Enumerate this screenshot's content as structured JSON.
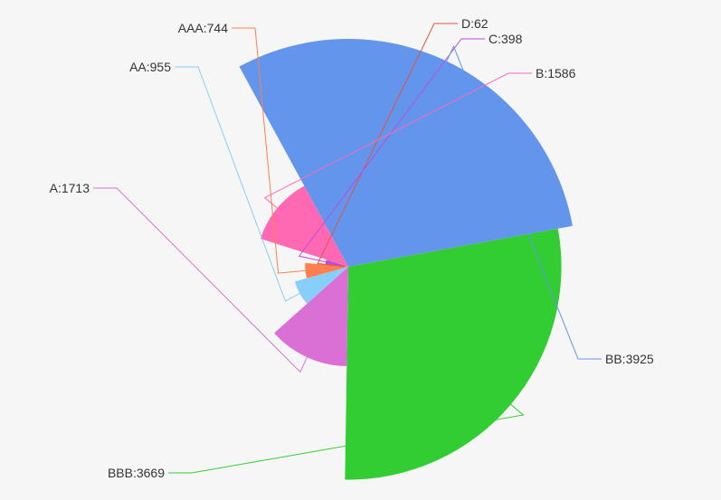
{
  "chart_data": {
    "type": "pie",
    "variant": "rose-radius",
    "title": "",
    "categories": [
      "D",
      "C",
      "B",
      "BB",
      "BBB",
      "A",
      "AA",
      "AAA"
    ],
    "values": [
      62,
      398,
      1586,
      3925,
      3669,
      1713,
      955,
      744
    ],
    "labels": [
      "D:62",
      "C:398",
      "B:1586",
      "BB:3925",
      "BBB:3669",
      "A:1713",
      "AA:955",
      "AAA:744"
    ],
    "colors": [
      "#e0533a",
      "#b84fe0",
      "#ff69b4",
      "#6495ed",
      "#32cd32",
      "#da70d6",
      "#87cefa",
      "#ff7f50"
    ],
    "legend": "none",
    "grid": false
  }
}
